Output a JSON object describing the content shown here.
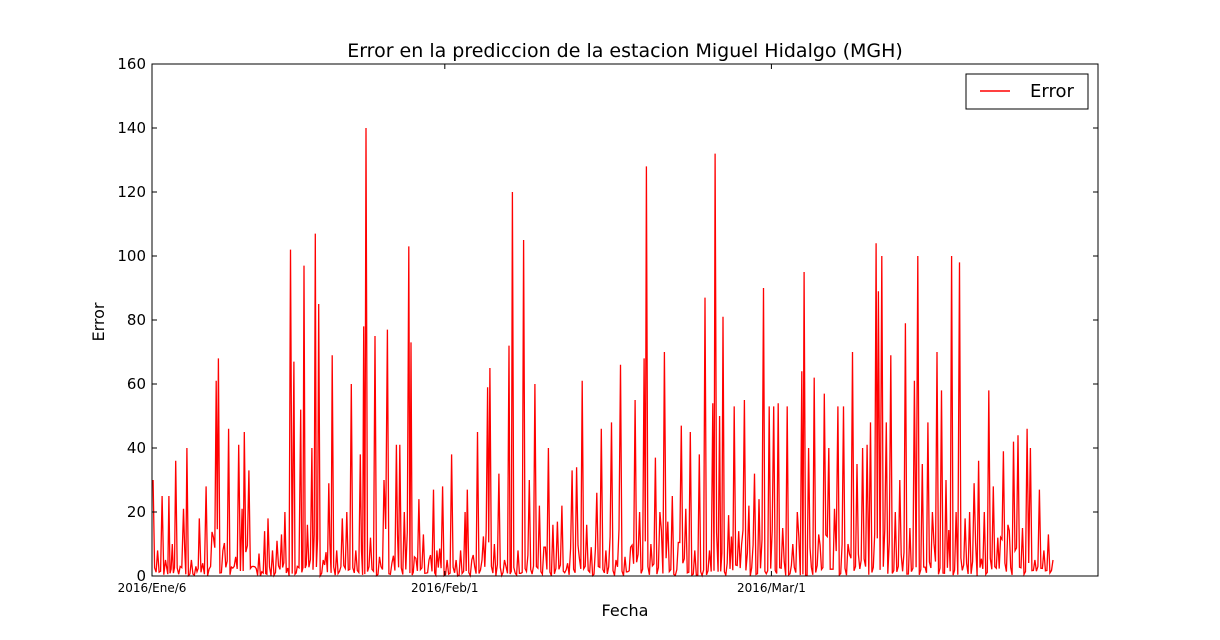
{
  "chart_data": {
    "type": "line",
    "title": "Error en la prediccion de la estacion Miguel Hidalgo (MGH)",
    "xlabel": "Fecha",
    "ylabel": "Error",
    "xlim_days": [
      0,
      84
    ],
    "ylim": [
      0,
      160
    ],
    "yticks": [
      0,
      20,
      40,
      60,
      80,
      100,
      120,
      140,
      160
    ],
    "xticks": [
      {
        "label": "2016/Ene/6",
        "day": 0
      },
      {
        "label": "2016/Feb/1",
        "day": 26
      },
      {
        "label": "2016/Mar/1",
        "day": 55
      }
    ],
    "grid": false,
    "legend": {
      "position": "top-right"
    },
    "series": [
      {
        "name": "Error",
        "color": "#ff0000",
        "peaks": [
          [
            0.1,
            30
          ],
          [
            0.5,
            8
          ],
          [
            0.9,
            25
          ],
          [
            1.2,
            5
          ],
          [
            1.5,
            25
          ],
          [
            1.8,
            10
          ],
          [
            2.1,
            36
          ],
          [
            2.5,
            3
          ],
          [
            2.8,
            21
          ],
          [
            3.1,
            40
          ],
          [
            3.5,
            5
          ],
          [
            3.9,
            3
          ],
          [
            4.2,
            18
          ],
          [
            4.5,
            4
          ],
          [
            4.8,
            28
          ],
          [
            5.2,
            3
          ],
          [
            5.7,
            61
          ],
          [
            5.9,
            68
          ],
          [
            6.3,
            8
          ],
          [
            6.8,
            46
          ],
          [
            7.3,
            3
          ],
          [
            7.7,
            41
          ],
          [
            8.0,
            21
          ],
          [
            8.2,
            45
          ],
          [
            8.6,
            33
          ],
          [
            9.0,
            3
          ],
          [
            9.5,
            7
          ],
          [
            10.0,
            14
          ],
          [
            10.3,
            18
          ],
          [
            10.7,
            8
          ],
          [
            11.1,
            11
          ],
          [
            11.5,
            13
          ],
          [
            11.8,
            20
          ],
          [
            12.3,
            102
          ],
          [
            12.6,
            67
          ],
          [
            12.9,
            3
          ],
          [
            13.2,
            52
          ],
          [
            13.5,
            97
          ],
          [
            13.8,
            16
          ],
          [
            14.2,
            40
          ],
          [
            14.5,
            107
          ],
          [
            14.8,
            85
          ],
          [
            15.2,
            5
          ],
          [
            15.7,
            29
          ],
          [
            16.0,
            69
          ],
          [
            16.4,
            8
          ],
          [
            16.9,
            18
          ],
          [
            17.3,
            20
          ],
          [
            17.7,
            60
          ],
          [
            18.1,
            8
          ],
          [
            18.5,
            38
          ],
          [
            18.8,
            78
          ],
          [
            19.0,
            140
          ],
          [
            19.4,
            12
          ],
          [
            19.8,
            75
          ],
          [
            20.2,
            6
          ],
          [
            20.6,
            30
          ],
          [
            20.9,
            77
          ],
          [
            21.3,
            4
          ],
          [
            21.7,
            41
          ],
          [
            22.0,
            41
          ],
          [
            22.4,
            20
          ],
          [
            22.8,
            103
          ],
          [
            23.0,
            73
          ],
          [
            23.3,
            6
          ],
          [
            23.7,
            24
          ],
          [
            24.1,
            13
          ],
          [
            24.6,
            5
          ],
          [
            25.0,
            27
          ],
          [
            25.3,
            8
          ],
          [
            25.8,
            28
          ],
          [
            26.2,
            5
          ],
          [
            26.6,
            38
          ],
          [
            27.0,
            5
          ],
          [
            27.4,
            8
          ],
          [
            27.8,
            20
          ],
          [
            28.0,
            27
          ],
          [
            28.4,
            5
          ],
          [
            28.9,
            45
          ],
          [
            29.3,
            5
          ],
          [
            29.8,
            59
          ],
          [
            30.0,
            65
          ],
          [
            30.4,
            10
          ],
          [
            30.8,
            32
          ],
          [
            31.3,
            5
          ],
          [
            31.7,
            72
          ],
          [
            32.0,
            120
          ],
          [
            32.5,
            8
          ],
          [
            33.0,
            105
          ],
          [
            33.5,
            30
          ],
          [
            34.0,
            60
          ],
          [
            34.4,
            22
          ],
          [
            34.8,
            9
          ],
          [
            35.2,
            40
          ],
          [
            35.6,
            16
          ],
          [
            36.0,
            17
          ],
          [
            36.4,
            22
          ],
          [
            36.9,
            4
          ],
          [
            37.3,
            33
          ],
          [
            37.7,
            34
          ],
          [
            38.2,
            61
          ],
          [
            38.6,
            16
          ],
          [
            39.0,
            9
          ],
          [
            39.5,
            26
          ],
          [
            39.9,
            46
          ],
          [
            40.3,
            8
          ],
          [
            40.8,
            48
          ],
          [
            41.2,
            5
          ],
          [
            41.6,
            66
          ],
          [
            42.0,
            6
          ],
          [
            42.5,
            9
          ],
          [
            42.9,
            55
          ],
          [
            43.3,
            20
          ],
          [
            43.7,
            68
          ],
          [
            43.9,
            128
          ],
          [
            44.3,
            10
          ],
          [
            44.7,
            37
          ],
          [
            45.1,
            20
          ],
          [
            45.5,
            70
          ],
          [
            45.8,
            17
          ],
          [
            46.2,
            25
          ],
          [
            46.6,
            2
          ],
          [
            47.0,
            47
          ],
          [
            47.4,
            21
          ],
          [
            47.8,
            45
          ],
          [
            48.2,
            8
          ],
          [
            48.6,
            38
          ],
          [
            49.1,
            87
          ],
          [
            49.5,
            8
          ],
          [
            49.8,
            54
          ],
          [
            50.0,
            132
          ],
          [
            50.4,
            50
          ],
          [
            50.7,
            81
          ],
          [
            51.2,
            19
          ],
          [
            51.7,
            53
          ],
          [
            52.1,
            14
          ],
          [
            52.6,
            55
          ],
          [
            53.0,
            22
          ],
          [
            53.5,
            32
          ],
          [
            53.9,
            24
          ],
          [
            54.3,
            90
          ],
          [
            54.8,
            53
          ],
          [
            55.2,
            53
          ],
          [
            55.6,
            54
          ],
          [
            56.0,
            15
          ],
          [
            56.4,
            53
          ],
          [
            56.9,
            10
          ],
          [
            57.3,
            20
          ],
          [
            57.7,
            64
          ],
          [
            57.9,
            95
          ],
          [
            58.3,
            40
          ],
          [
            58.8,
            62
          ],
          [
            59.2,
            13
          ],
          [
            59.7,
            57
          ],
          [
            60.1,
            40
          ],
          [
            60.6,
            21
          ],
          [
            60.9,
            53
          ],
          [
            61.4,
            53
          ],
          [
            61.8,
            10
          ],
          [
            62.2,
            70
          ],
          [
            62.6,
            35
          ],
          [
            63.1,
            40
          ],
          [
            63.5,
            41
          ],
          [
            63.8,
            48
          ],
          [
            64.3,
            104
          ],
          [
            64.5,
            89
          ],
          [
            64.8,
            100
          ],
          [
            65.2,
            48
          ],
          [
            65.6,
            69
          ],
          [
            66.0,
            20
          ],
          [
            66.4,
            30
          ],
          [
            66.9,
            79
          ],
          [
            67.3,
            15
          ],
          [
            67.7,
            61
          ],
          [
            68.0,
            100
          ],
          [
            68.4,
            35
          ],
          [
            68.9,
            48
          ],
          [
            69.3,
            20
          ],
          [
            69.7,
            70
          ],
          [
            70.1,
            58
          ],
          [
            70.5,
            30
          ],
          [
            71.0,
            100
          ],
          [
            71.4,
            20
          ],
          [
            71.7,
            98
          ],
          [
            72.2,
            18
          ],
          [
            72.6,
            20
          ],
          [
            73.0,
            29
          ],
          [
            73.4,
            36
          ],
          [
            73.9,
            20
          ],
          [
            74.3,
            58
          ],
          [
            74.7,
            28
          ],
          [
            75.1,
            12
          ],
          [
            75.6,
            39
          ],
          [
            76.0,
            16
          ],
          [
            76.5,
            42
          ],
          [
            76.9,
            44
          ],
          [
            77.3,
            15
          ],
          [
            77.7,
            46
          ],
          [
            78.0,
            40
          ],
          [
            78.4,
            5
          ],
          [
            78.8,
            27
          ],
          [
            79.2,
            8
          ],
          [
            79.6,
            13
          ],
          [
            80.0,
            5
          ]
        ]
      }
    ]
  }
}
